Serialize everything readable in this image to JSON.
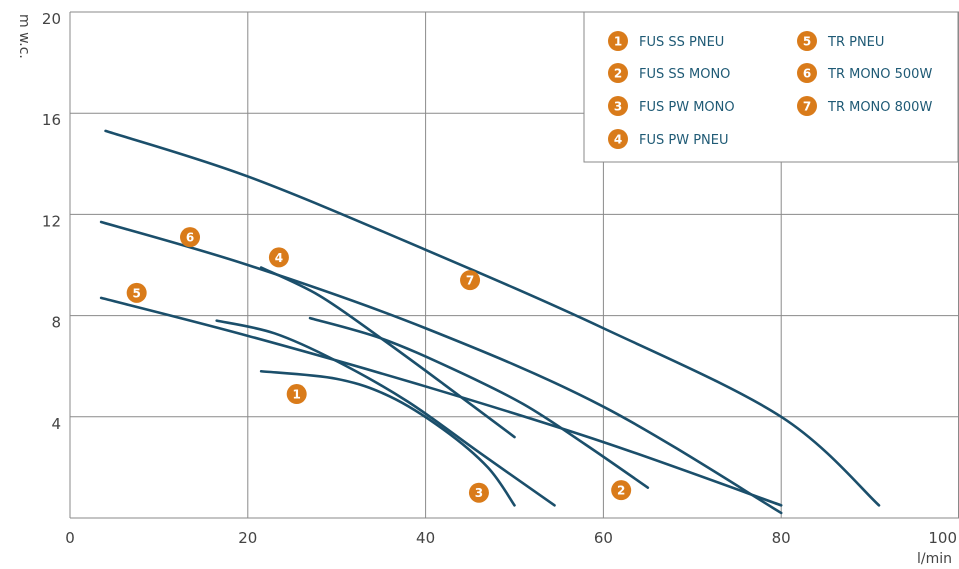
{
  "chart_data": {
    "type": "line",
    "xlabel": "l/min",
    "ylabel": "m w.c.",
    "xlim": [
      0,
      100
    ],
    "ylim": [
      0,
      20
    ],
    "x_ticks": [
      "0",
      "20",
      "40",
      "60",
      "80",
      "100"
    ],
    "y_ticks": [
      "4",
      "8",
      "12",
      "16",
      "20"
    ],
    "grid": true,
    "legend_position": "top-right",
    "colors": {
      "line": "#1b4f6b",
      "badge": "#d97b1a",
      "legend_text": "#1f5a75",
      "grid": "#8a8a8a"
    },
    "series": [
      {
        "id": "1",
        "name": "FUS SS PNEU",
        "x": [
          21.5,
          30,
          36,
          42,
          47,
          50
        ],
        "y": [
          5.8,
          5.5,
          4.8,
          3.5,
          2.0,
          0.5
        ]
      },
      {
        "id": "2",
        "name": "FUS SS MONO",
        "x": [
          27,
          35,
          43,
          51,
          58,
          65
        ],
        "y": [
          7.9,
          7.1,
          5.9,
          4.5,
          2.9,
          1.2
        ]
      },
      {
        "id": "3",
        "name": "FUS PW MONO",
        "x": [
          16.5,
          23,
          30,
          38,
          46,
          54.5
        ],
        "y": [
          7.8,
          7.3,
          6.2,
          4.6,
          2.6,
          0.5
        ]
      },
      {
        "id": "4",
        "name": "FUS PW PNEU",
        "x": [
          21.5,
          28,
          35,
          42,
          50
        ],
        "y": [
          9.9,
          8.8,
          7.1,
          5.3,
          3.2
        ]
      },
      {
        "id": "5",
        "name": "TR PNEU",
        "x": [
          3.5,
          20,
          40,
          60,
          80
        ],
        "y": [
          8.7,
          7.2,
          5.2,
          3.0,
          0.5
        ]
      },
      {
        "id": "6",
        "name": "TR MONO 500W",
        "x": [
          3.5,
          20,
          40,
          60,
          80
        ],
        "y": [
          11.7,
          10.0,
          7.5,
          4.4,
          0.2
        ]
      },
      {
        "id": "7",
        "name": "TR MONO 800W",
        "x": [
          4,
          20,
          40,
          60,
          80,
          91
        ],
        "y": [
          15.3,
          13.5,
          10.6,
          7.5,
          4.0,
          0.5
        ]
      }
    ],
    "curve_labels": [
      {
        "id": "1",
        "x": 25.5,
        "y": 4.9
      },
      {
        "id": "2",
        "x": 62,
        "y": 1.1
      },
      {
        "id": "3",
        "x": 46,
        "y": 1.0
      },
      {
        "id": "4",
        "x": 23.5,
        "y": 10.3
      },
      {
        "id": "5",
        "x": 7.5,
        "y": 8.9
      },
      {
        "id": "6",
        "x": 13.5,
        "y": 11.1
      },
      {
        "id": "7",
        "x": 45,
        "y": 9.4
      }
    ]
  }
}
